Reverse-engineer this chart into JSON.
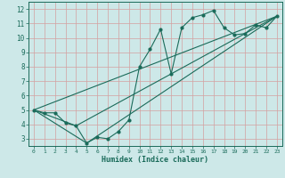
{
  "title": "",
  "xlabel": "Humidex (Indice chaleur)",
  "ylabel": "",
  "bg_color": "#cde8e8",
  "grid_color": "#c0d8d8",
  "line_color": "#1a6b5a",
  "xlim": [
    -0.5,
    23.5
  ],
  "ylim": [
    2.5,
    12.5
  ],
  "xticks": [
    0,
    1,
    2,
    3,
    4,
    5,
    6,
    7,
    8,
    9,
    10,
    11,
    12,
    13,
    14,
    15,
    16,
    17,
    18,
    19,
    20,
    21,
    22,
    23
  ],
  "yticks": [
    3,
    4,
    5,
    6,
    7,
    8,
    9,
    10,
    11,
    12
  ],
  "line1_x": [
    0,
    1,
    2,
    3,
    4,
    5,
    6,
    7,
    8,
    9,
    10,
    11,
    12,
    13,
    14,
    15,
    16,
    17,
    18,
    19,
    20,
    21,
    22,
    23
  ],
  "line1_y": [
    5.0,
    4.8,
    4.8,
    4.1,
    3.9,
    2.7,
    3.1,
    3.0,
    3.5,
    4.3,
    8.0,
    9.2,
    10.6,
    7.5,
    10.7,
    11.4,
    11.6,
    11.9,
    10.7,
    10.2,
    10.3,
    10.9,
    10.7,
    11.5
  ],
  "line2_x": [
    0,
    23
  ],
  "line2_y": [
    5.0,
    11.5
  ],
  "line3_x": [
    0,
    4,
    23
  ],
  "line3_y": [
    5.0,
    3.9,
    11.5
  ],
  "line4_x": [
    0,
    5,
    23
  ],
  "line4_y": [
    5.0,
    2.7,
    11.5
  ]
}
